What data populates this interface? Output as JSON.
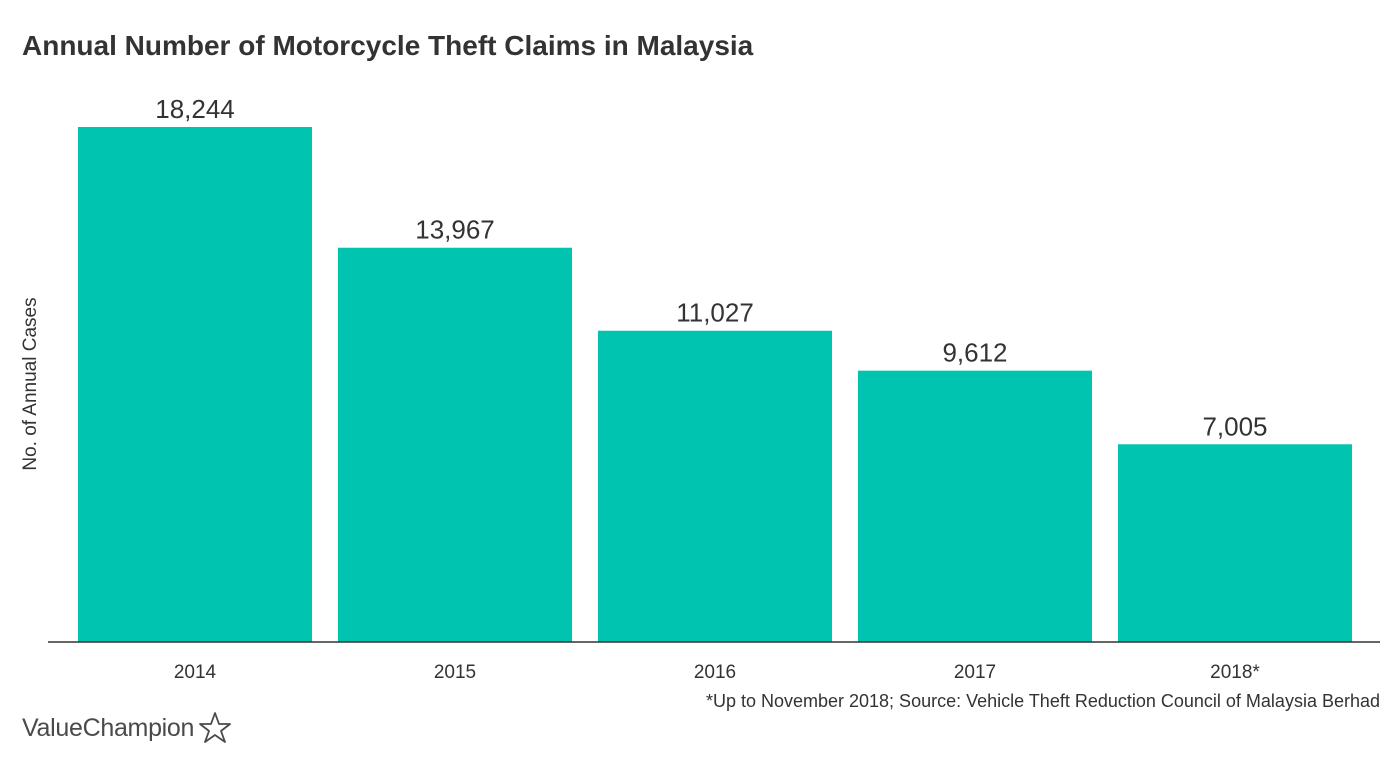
{
  "title": "Annual Number of Motorcycle Theft Claims in Malaysia",
  "footnote": "*Up to November 2018; Source: Vehicle Theft Reduction Council of Malaysia Berhad",
  "brand": {
    "name": "ValueChampion",
    "icon": "star-outline-icon"
  },
  "colors": {
    "bar": "#00C4B0",
    "text": "#333333",
    "axis": "#333333"
  },
  "chart_data": {
    "type": "bar",
    "title": "Annual Number of Motorcycle Theft Claims in Malaysia",
    "xlabel": "",
    "ylabel": "No. of Annual Cases",
    "categories": [
      "2014",
      "2015",
      "2016",
      "2017",
      "2018*"
    ],
    "values": [
      18244,
      13967,
      11027,
      9612,
      7005
    ],
    "value_labels": [
      "18,244",
      "13,967",
      "11,027",
      "9,612",
      "7,005"
    ],
    "ylim": [
      0,
      18244
    ],
    "grid": false,
    "legend": "none"
  }
}
